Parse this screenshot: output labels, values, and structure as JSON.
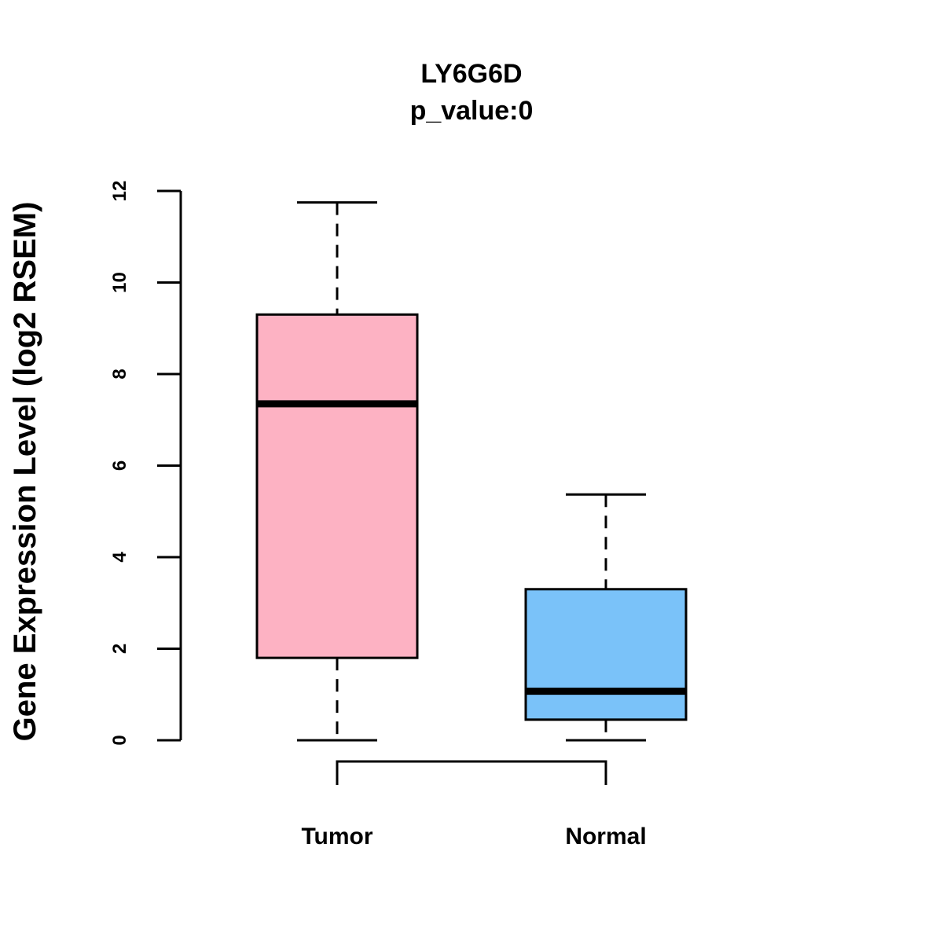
{
  "chart_data": {
    "type": "boxplot",
    "title": "LY6G6D",
    "subtitle": "p_value:0",
    "ylabel": "Gene Expression Level (log2 RSEM)",
    "xlabel": "",
    "ylim": [
      0,
      12
    ],
    "yticks": [
      0,
      2,
      4,
      6,
      8,
      10,
      12
    ],
    "categories": [
      "Tumor",
      "Normal"
    ],
    "series": [
      {
        "name": "Tumor",
        "min": 0,
        "q1": 1.8,
        "median": 7.35,
        "q3": 9.3,
        "max": 11.75,
        "color": "#FDB2C3"
      },
      {
        "name": "Normal",
        "min": 0,
        "q1": 0.45,
        "median": 1.07,
        "q3": 3.3,
        "max": 5.37,
        "color": "#7AC2F9"
      }
    ],
    "comparison_bracket": [
      "Tumor",
      "Normal"
    ]
  }
}
